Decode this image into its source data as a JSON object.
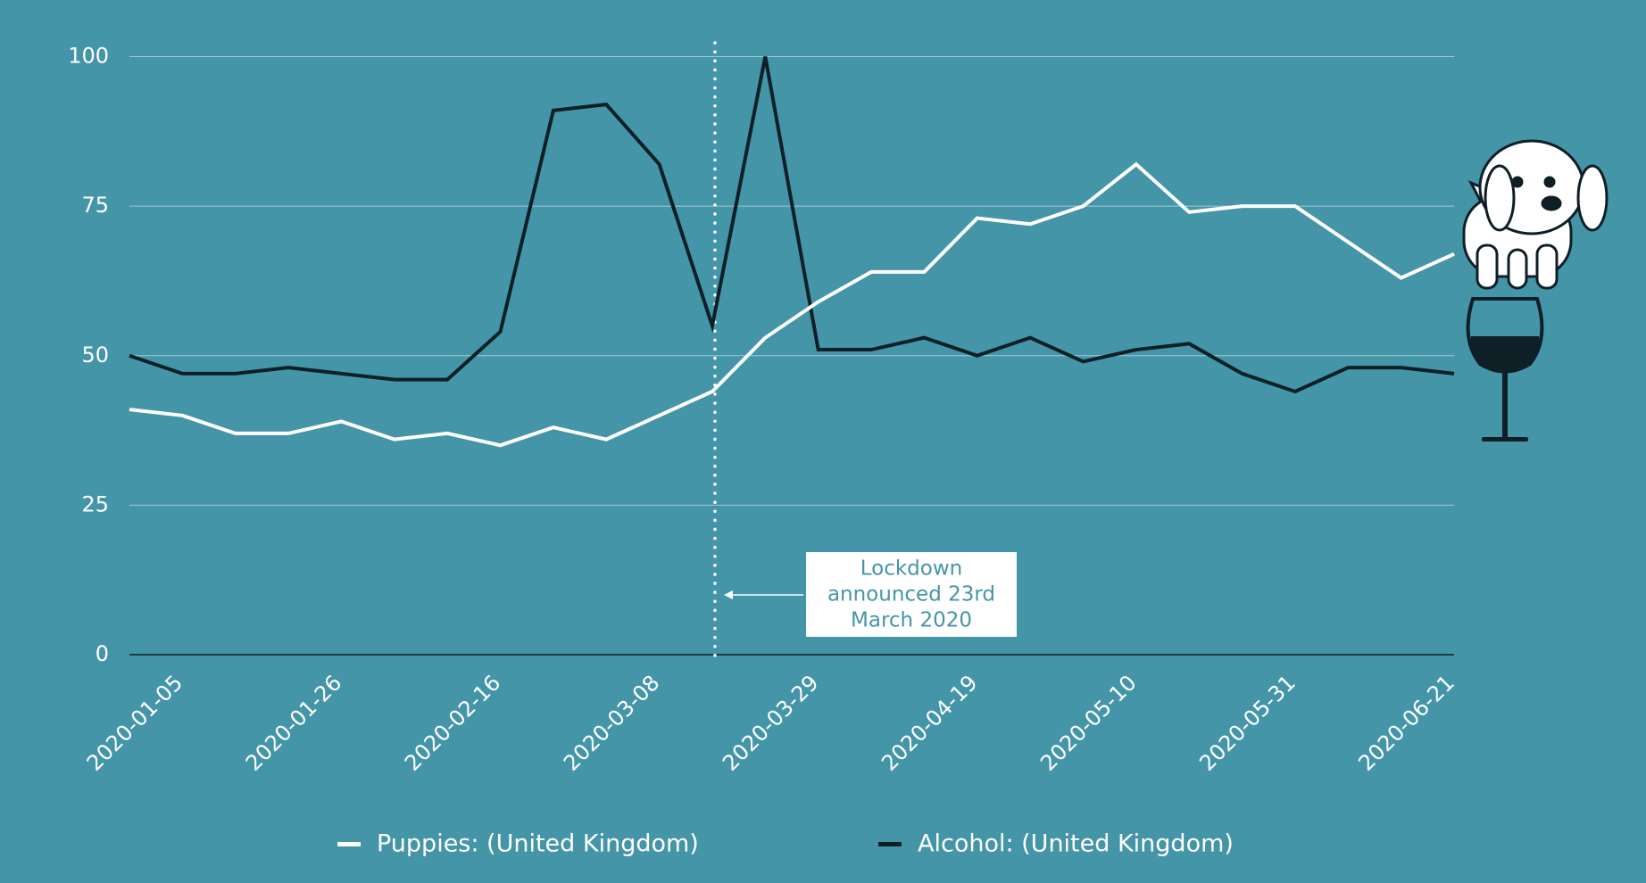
{
  "chart_data": {
    "type": "line",
    "categories": [
      "2020-01-05",
      null,
      null,
      "2020-01-26",
      null,
      null,
      "2020-02-16",
      null,
      null,
      "2020-03-08",
      null,
      null,
      "2020-03-29",
      null,
      null,
      "2020-04-19",
      null,
      null,
      "2020-05-10",
      null,
      null,
      "2020-05-31",
      null,
      null,
      "2020-06-21",
      null
    ],
    "series": [
      {
        "name": "Puppies: (United Kingdom)",
        "color": "#ffffff",
        "values": [
          41,
          40,
          37,
          37,
          39,
          36,
          37,
          35,
          38,
          36,
          40,
          44,
          53,
          59,
          64,
          64,
          73,
          72,
          75,
          82,
          74,
          75,
          75,
          69,
          63,
          67
        ]
      },
      {
        "name": "Alcohol: (United Kingdom)",
        "color": "#0f1f26",
        "values": [
          50,
          47,
          47,
          48,
          47,
          46,
          46,
          54,
          91,
          92,
          82,
          55,
          100,
          51,
          51,
          53,
          50,
          53,
          49,
          51,
          52,
          47,
          44,
          48,
          48,
          47
        ]
      }
    ],
    "ylim": [
      0,
      100
    ],
    "yticks": [
      0,
      25,
      50,
      75,
      100
    ],
    "grid": true,
    "annotation": {
      "lines": [
        "Lockdown",
        "announced 23rd",
        "March 2020"
      ]
    }
  }
}
